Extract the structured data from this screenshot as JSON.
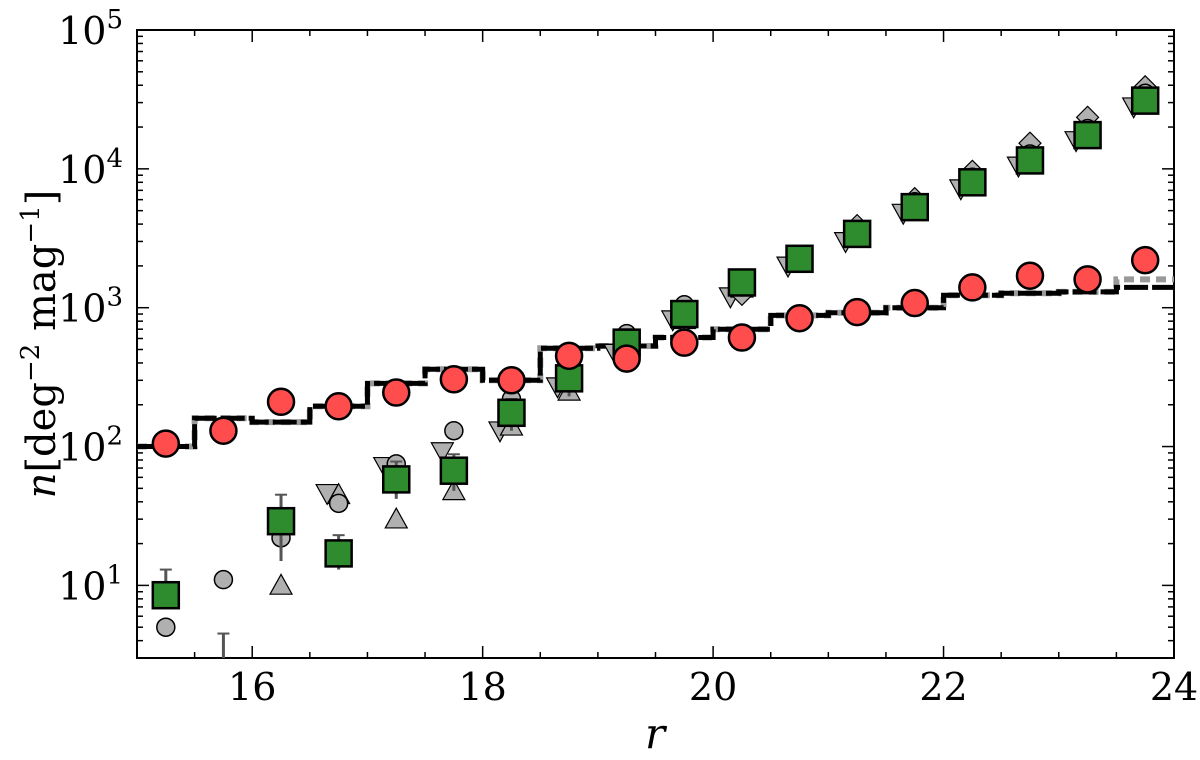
{
  "chart_data": {
    "type": "scatter",
    "xlabel": "r",
    "ylabel": {
      "var": "n",
      "unit": "[deg",
      "exp1": "−2",
      "mid": " mag",
      "exp2": "−1",
      "close": "]"
    },
    "xlim": [
      15,
      24
    ],
    "ylim": [
      3,
      100000
    ],
    "yscale": "log",
    "xticks": [
      "16",
      "18",
      "20",
      "22",
      "24"
    ],
    "yticks": [
      {
        "base": "10",
        "exp": "1"
      },
      {
        "base": "10",
        "exp": "2"
      },
      {
        "base": "10",
        "exp": "3"
      },
      {
        "base": "10",
        "exp": "4"
      },
      {
        "base": "10",
        "exp": "5"
      }
    ],
    "grid": false,
    "colors": {
      "red": "#ff4d4d",
      "green": "#2e8b2e",
      "gray": "#b0b0b0",
      "black": "#000000",
      "errbar": "#555555"
    },
    "step_solid": {
      "x": [
        15.0,
        15.5,
        16.0,
        16.5,
        17.0,
        17.5,
        18.0,
        18.5,
        19.0,
        19.5,
        20.0,
        20.5,
        21.0,
        21.5,
        22.0,
        22.5,
        23.0,
        23.5,
        24.0
      ],
      "y": [
        100,
        160,
        150,
        195,
        285,
        360,
        300,
        510,
        530,
        610,
        700,
        880,
        920,
        1000,
        1230,
        1270,
        1300,
        1400,
        1400
      ]
    },
    "step_dashed": {
      "x": [
        15.0,
        15.5,
        16.0,
        16.5,
        17.0,
        17.5,
        18.0,
        18.5,
        19.0,
        19.5,
        20.0,
        20.5,
        21.0,
        21.5,
        22.0,
        22.5,
        23.0,
        23.5,
        24.0
      ],
      "y": [
        100,
        160,
        150,
        195,
        285,
        360,
        300,
        510,
        530,
        610,
        700,
        880,
        920,
        1000,
        1230,
        1270,
        1300,
        1600,
        1600
      ]
    },
    "series": [
      {
        "marker": "circle-red",
        "x": [
          15.25,
          15.75,
          16.25,
          16.75,
          17.25,
          17.75,
          18.25,
          18.75,
          19.25,
          19.75,
          20.25,
          20.75,
          21.25,
          21.75,
          22.25,
          22.75,
          23.25,
          23.75
        ],
        "y": [
          105,
          130,
          210,
          195,
          245,
          305,
          300,
          450,
          430,
          560,
          610,
          840,
          930,
          1080,
          1400,
          1700,
          1600,
          2200
        ]
      },
      {
        "marker": "square-green",
        "x": [
          15.25,
          16.25,
          16.75,
          17.25,
          17.75,
          18.25,
          18.75,
          19.25,
          19.75,
          20.25,
          20.75,
          21.25,
          21.75,
          22.25,
          22.75,
          23.25,
          23.75
        ],
        "y": [
          8.5,
          29,
          17,
          58,
          67,
          175,
          310,
          560,
          900,
          1520,
          2250,
          3400,
          5300,
          8000,
          11500,
          17500,
          31000
        ],
        "err_low": [
          7.5,
          15,
          13,
          42,
          48,
          130,
          230,
          420,
          700,
          1200,
          1900,
          2900,
          4700,
          7300,
          10600,
          16300,
          29500
        ],
        "err_high": [
          13,
          45,
          23,
          78,
          88,
          220,
          390,
          700,
          1100,
          1850,
          2650,
          3950,
          5900,
          8700,
          12400,
          18700,
          32700
        ]
      },
      {
        "marker": "circle-gray",
        "x": [
          15.25,
          15.75,
          16.25,
          16.75,
          17.25,
          17.75,
          18.25,
          18.75,
          19.25,
          19.75,
          20.25,
          20.75,
          21.25,
          21.75,
          22.25,
          22.75,
          23.25,
          23.75
        ],
        "y": [
          5,
          11,
          22,
          39,
          75,
          130,
          220,
          460,
          650,
          1050,
          1500,
          2250,
          3600,
          5800,
          8700,
          12800,
          19500,
          35000
        ]
      },
      {
        "marker": "triangle-up-gray",
        "x": [
          16.25,
          16.75,
          17.25,
          17.75,
          18.25,
          18.75,
          19.25,
          19.75,
          20.25,
          20.75,
          21.25,
          21.75,
          22.25,
          22.75,
          23.25,
          23.75
        ],
        "y": [
          10,
          45,
          30,
          48,
          140,
          250,
          480,
          820,
          1380,
          2150,
          3400,
          5500,
          8300,
          12000,
          18000,
          33000
        ]
      },
      {
        "marker": "triangle-down-gray",
        "x": [
          16.65,
          17.15,
          17.65,
          18.15,
          18.65,
          19.15,
          19.65,
          20.15,
          20.65,
          21.15,
          21.65,
          22.15,
          22.65,
          23.15,
          23.65
        ],
        "y": [
          46,
          72,
          92,
          130,
          270,
          470,
          820,
          1200,
          2000,
          3000,
          4800,
          7200,
          10500,
          16000,
          28000
        ]
      },
      {
        "marker": "diamond-gray",
        "x": [
          19.25,
          19.75,
          20.25,
          20.75,
          21.25,
          21.75,
          22.25,
          22.75,
          23.25,
          23.75
        ],
        "y": [
          420,
          800,
          1250,
          2300,
          3900,
          6100,
          9600,
          15300,
          23500,
          39000
        ]
      },
      {
        "marker": "errbar-gray",
        "x": [
          15.75
        ],
        "y": [
          3
        ],
        "err_high": [
          4.5
        ]
      }
    ]
  }
}
